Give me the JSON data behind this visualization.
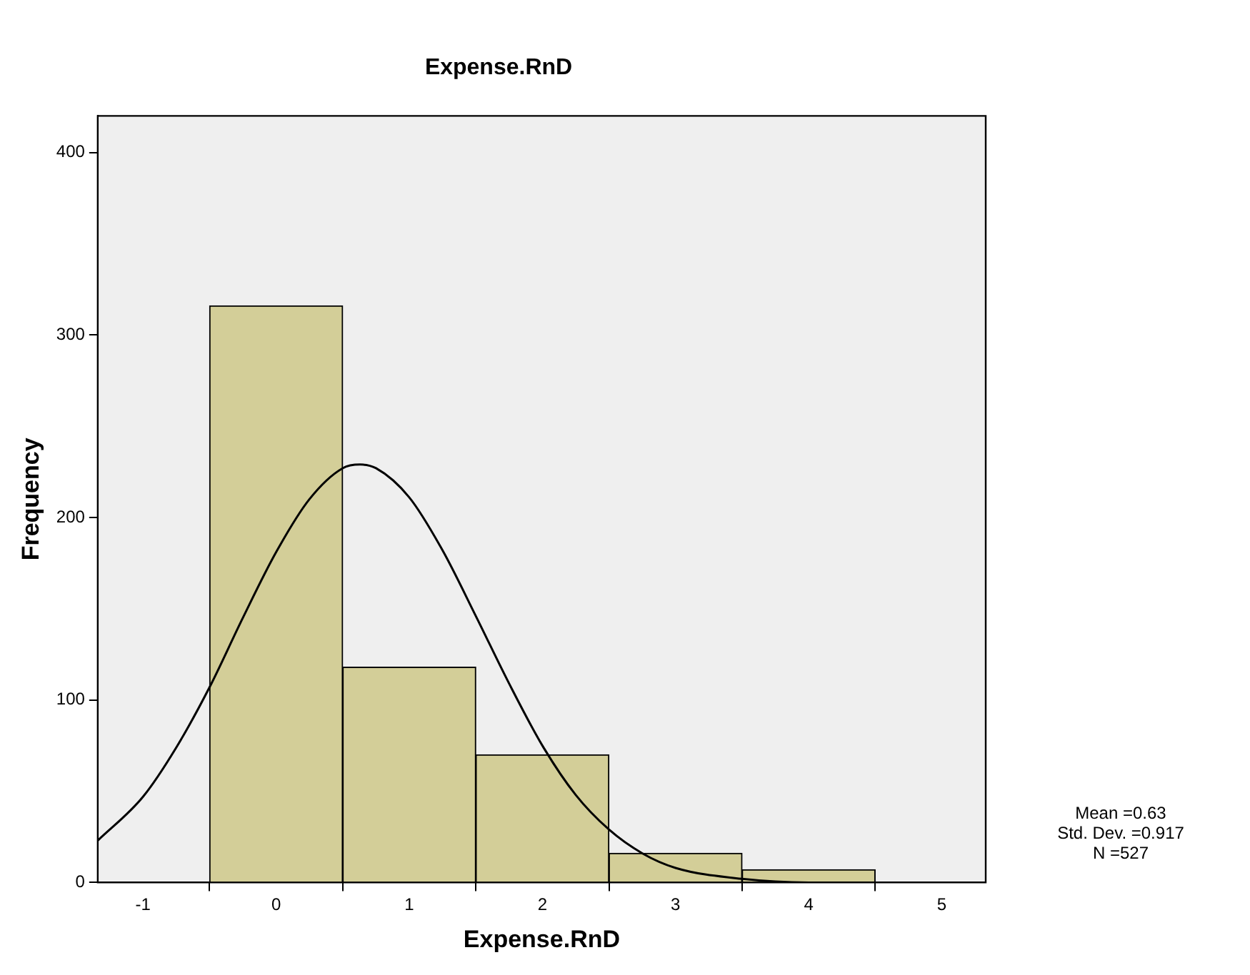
{
  "chart_data": {
    "type": "histogram",
    "title": "Expense.RnD",
    "xlabel": "Expense.RnD",
    "ylabel": "Frequency",
    "bins": [
      -0.5,
      0.5,
      1.5,
      2.5,
      3.5,
      4.5
    ],
    "values": [
      316,
      118,
      70,
      16,
      7
    ],
    "color": "#d3ce98",
    "series": [
      {
        "type": "line",
        "color": "#000000",
        "x": [
          -1.34,
          -1,
          -0.75,
          -0.5,
          -0.25,
          0,
          0.25,
          0.5,
          0.63,
          0.75,
          1,
          1.25,
          1.5,
          1.75,
          2,
          2.25,
          2.5,
          2.75,
          3,
          3.5,
          4,
          4.5,
          5,
          5.33
        ],
        "values": [
          23,
          47,
          74,
          107,
          145,
          181,
          210,
          227,
          229,
          227,
          211,
          182,
          146,
          109,
          75,
          48,
          29,
          16,
          8,
          2,
          0,
          0,
          0,
          0
        ]
      }
    ],
    "xlim": [
      -1.34,
      5.33
    ],
    "xticks": [
      -1,
      0,
      1,
      2,
      3,
      4,
      5
    ],
    "ylim": [
      0,
      420
    ],
    "yticks": [
      0,
      100,
      200,
      300,
      400
    ],
    "grid": false,
    "legend": false,
    "marker": "none",
    "line_style": "solid",
    "annotations": [
      "Mean =0.63",
      "Std. Dev. =0.917",
      "N =527"
    ]
  }
}
